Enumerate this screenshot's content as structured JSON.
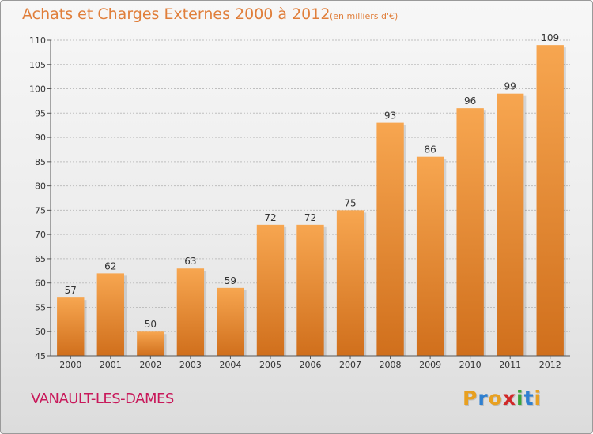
{
  "header": {
    "title": "Achats et Charges Externes 2000 à 2012",
    "subtitle": "(en milliers d'€)"
  },
  "footer": {
    "commune": "VANAULT-LES-DAMES",
    "brand": {
      "letters": [
        {
          "char": "P",
          "color": "#e8a020"
        },
        {
          "char": "r",
          "color": "#2e7fd0"
        },
        {
          "char": "o",
          "color": "#e8a020"
        },
        {
          "char": "x",
          "color": "#d02828"
        },
        {
          "char": "i",
          "color": "#3aa43a"
        },
        {
          "char": "t",
          "color": "#2e7fd0"
        },
        {
          "char": "i",
          "color": "#e8a020"
        }
      ]
    }
  },
  "colors": {
    "bar_light": "#f7a650",
    "bar_dark": "#d06f1c",
    "axis": "#555555",
    "grid": "#bfbfbf"
  },
  "chart_data": {
    "type": "bar",
    "categories": [
      "2000",
      "2001",
      "2002",
      "2003",
      "2004",
      "2005",
      "2006",
      "2007",
      "2008",
      "2009",
      "2010",
      "2011",
      "2012"
    ],
    "values": [
      57,
      62,
      50,
      63,
      59,
      72,
      72,
      75,
      93,
      86,
      96,
      99,
      109
    ],
    "ylim": [
      45,
      110
    ],
    "yticks": [
      45,
      50,
      55,
      60,
      65,
      70,
      75,
      80,
      85,
      90,
      95,
      100,
      105,
      110
    ],
    "grid": true,
    "grid_axis": "y",
    "legend": "none",
    "data_labels": true
  }
}
